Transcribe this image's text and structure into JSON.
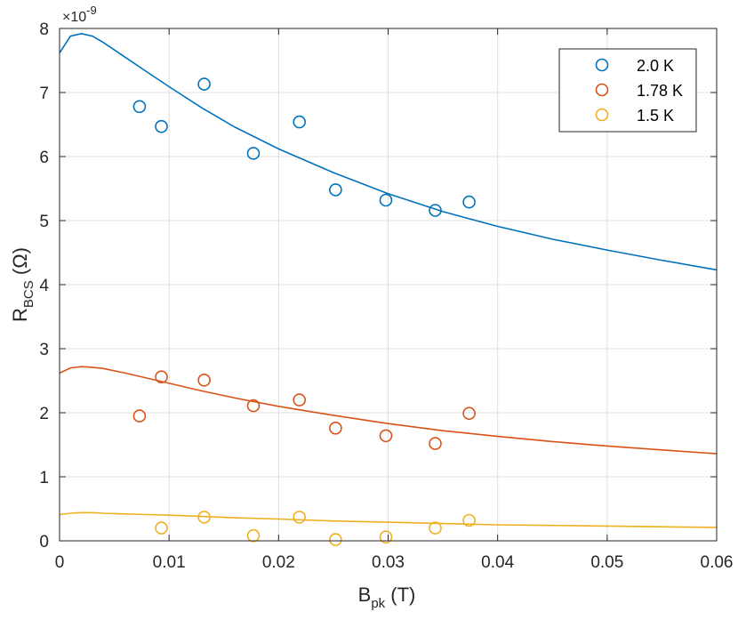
{
  "chart_data": {
    "type": "scatter",
    "xlabel_main": "B",
    "xlabel_sub": "pk",
    "xlabel_unit": " (T)",
    "ylabel_main": "R",
    "ylabel_sub": "BCS",
    "ylabel_unit": " (Ω)",
    "y_multiplier": "×10",
    "y_multiplier_exp": "-9",
    "xlim": [
      0,
      0.06
    ],
    "ylim": [
      0,
      8
    ],
    "xticks": [
      0,
      0.01,
      0.02,
      0.03,
      0.04,
      0.05,
      0.06
    ],
    "xtick_labels": [
      "0",
      "0.01",
      "0.02",
      "0.03",
      "0.04",
      "0.05",
      "0.06"
    ],
    "yticks": [
      0,
      1,
      2,
      3,
      4,
      5,
      6,
      7,
      8
    ],
    "ytick_labels": [
      "0",
      "1",
      "2",
      "3",
      "4",
      "5",
      "6",
      "7",
      "8"
    ],
    "grid": true,
    "legend_position": "top-right",
    "series": [
      {
        "name": "2.0 K",
        "color": "#0072BD",
        "x": [
          0.0073,
          0.0093,
          0.0132,
          0.0177,
          0.0219,
          0.0252,
          0.0298,
          0.0343,
          0.0374
        ],
        "y": [
          6.78,
          6.47,
          7.13,
          6.05,
          6.54,
          5.48,
          5.32,
          5.16,
          5.29
        ],
        "fit_x": [
          0,
          0.001,
          0.002,
          0.003,
          0.004,
          0.006,
          0.008,
          0.01,
          0.013,
          0.016,
          0.02,
          0.025,
          0.03,
          0.035,
          0.04,
          0.045,
          0.05,
          0.055,
          0.06
        ],
        "fit_y": [
          7.62,
          7.88,
          7.92,
          7.88,
          7.78,
          7.55,
          7.32,
          7.09,
          6.76,
          6.46,
          6.12,
          5.75,
          5.42,
          5.14,
          4.91,
          4.71,
          4.54,
          4.38,
          4.23
        ]
      },
      {
        "name": "1.78 K",
        "color": "#D95319",
        "x": [
          0.0073,
          0.0093,
          0.0132,
          0.0177,
          0.0219,
          0.0252,
          0.0298,
          0.0343,
          0.0374
        ],
        "y": [
          1.95,
          2.56,
          2.51,
          2.11,
          2.2,
          1.76,
          1.64,
          1.52,
          1.99
        ],
        "fit_x": [
          0,
          0.001,
          0.002,
          0.003,
          0.004,
          0.006,
          0.008,
          0.01,
          0.013,
          0.016,
          0.02,
          0.025,
          0.03,
          0.035,
          0.04,
          0.045,
          0.05,
          0.055,
          0.06
        ],
        "fit_y": [
          2.62,
          2.7,
          2.72,
          2.71,
          2.69,
          2.62,
          2.54,
          2.46,
          2.34,
          2.23,
          2.1,
          1.96,
          1.83,
          1.72,
          1.63,
          1.55,
          1.48,
          1.42,
          1.36
        ]
      },
      {
        "name": "1.5 K",
        "color": "#EDB120",
        "x": [
          0.0093,
          0.0132,
          0.0177,
          0.0219,
          0.0252,
          0.0298,
          0.0343,
          0.0374
        ],
        "y": [
          0.2,
          0.37,
          0.08,
          0.37,
          0.02,
          0.06,
          0.2,
          0.32
        ],
        "fit_x": [
          0,
          0.001,
          0.002,
          0.003,
          0.004,
          0.006,
          0.008,
          0.01,
          0.013,
          0.016,
          0.02,
          0.025,
          0.03,
          0.035,
          0.04,
          0.045,
          0.05,
          0.055,
          0.06
        ],
        "fit_y": [
          0.41,
          0.43,
          0.44,
          0.44,
          0.43,
          0.42,
          0.41,
          0.4,
          0.38,
          0.36,
          0.34,
          0.31,
          0.29,
          0.27,
          0.25,
          0.24,
          0.23,
          0.22,
          0.21
        ]
      }
    ]
  }
}
